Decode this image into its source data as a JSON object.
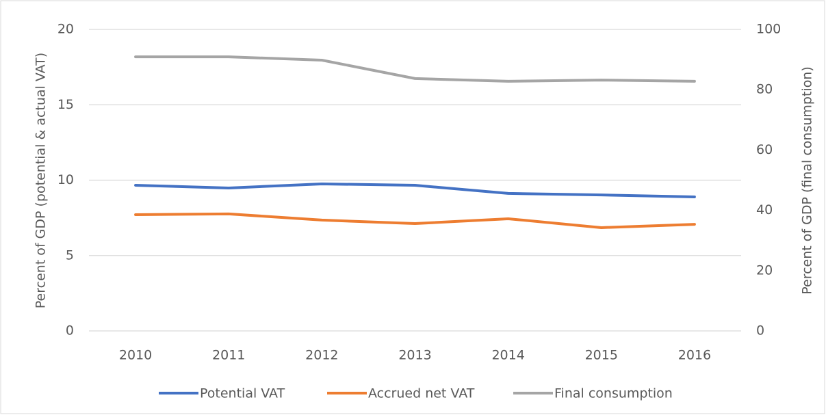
{
  "chart_data": {
    "type": "line",
    "categories": [
      "2010",
      "2011",
      "2012",
      "2013",
      "2014",
      "2015",
      "2016"
    ],
    "series": [
      {
        "name": "Potential VAT",
        "color": "#4472c4",
        "values": [
          9.66,
          9.48,
          9.75,
          9.66,
          9.12,
          9.02,
          8.89
        ]
      },
      {
        "name": "Accrued net VAT",
        "color": "#ed7d31",
        "values": [
          7.71,
          7.76,
          7.35,
          7.12,
          7.44,
          6.85,
          7.07
        ]
      },
      {
        "name": "Final consumption",
        "color": "#a5a5a5",
        "axis": "y2",
        "values": [
          90.9,
          90.9,
          89.8,
          83.7,
          82.8,
          83.2,
          82.8
        ]
      }
    ],
    "ylabel": "Percent of GDP (potential & actual VAT)",
    "y2label": "Percent of GDP (final consumption)",
    "ylim": [
      0,
      20
    ],
    "yticks": [
      0,
      5,
      10,
      15,
      20
    ],
    "y2lim": [
      0,
      100
    ],
    "y2ticks": [
      0,
      20,
      40,
      60,
      80,
      100
    ],
    "grid": true,
    "legend": "bottom"
  }
}
